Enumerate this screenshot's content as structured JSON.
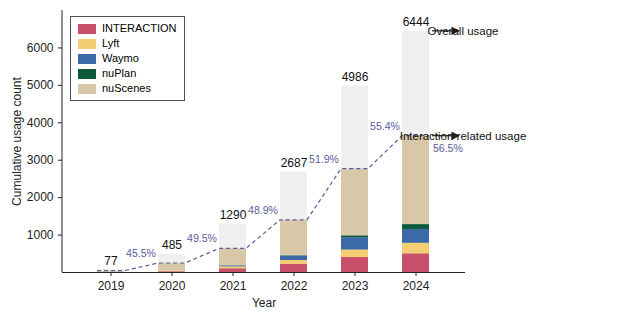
{
  "chart_data": {
    "type": "bar",
    "stacked": true,
    "grid": false,
    "legend": "top-left",
    "x_label": "Year",
    "y_label": "Cumulative usage count",
    "categories": [
      "2019",
      "2020",
      "2021",
      "2022",
      "2023",
      "2024"
    ],
    "ylim": [
      0,
      7000
    ],
    "yticks": [
      1000,
      2000,
      3000,
      4000,
      5000,
      6000
    ],
    "series": [
      {
        "name": "INTERACTION",
        "color": "#c8506a",
        "values": [
          5,
          20,
          100,
          220,
          400,
          500
        ]
      },
      {
        "name": "Lyft",
        "color": "#f5cd72",
        "values": [
          0,
          15,
          50,
          100,
          200,
          280
        ]
      },
      {
        "name": "Waymo",
        "color": "#3c6aa8",
        "values": [
          0,
          0,
          30,
          120,
          330,
          370
        ]
      },
      {
        "name": "nuPlan",
        "color": "#0d5a3a",
        "values": [
          0,
          0,
          0,
          10,
          50,
          130
        ]
      },
      {
        "name": "nuScenes",
        "color": "#d9c8a8",
        "values": [
          30,
          205,
          451,
          945,
          1782,
          2361
        ]
      }
    ],
    "overall": {
      "name": "Overall usage",
      "color": "#efefef",
      "data_labels": true,
      "values": [
        77,
        485,
        1290,
        2687,
        4986,
        6444
      ]
    },
    "interaction_share": {
      "name": "Interaction related usage",
      "color": "#5b5b9b",
      "line_style": "dashed",
      "data_labels": true,
      "values": [
        45.5,
        49.5,
        48.9,
        51.9,
        55.4,
        56.5
      ],
      "value_labels": [
        "45.5%",
        "49.5%",
        "48.9%",
        "51.9%",
        "55.4%",
        "56.5%"
      ]
    }
  }
}
